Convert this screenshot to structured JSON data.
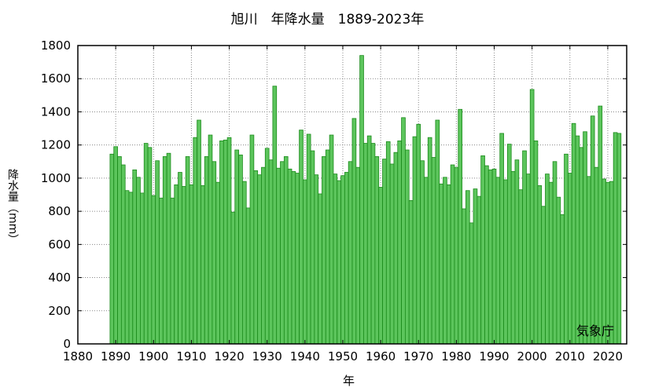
{
  "chart_data": {
    "type": "bar",
    "title": "旭川　年降水量　1889-2023年",
    "xlabel": "年",
    "ylabel": "降水量（mm）",
    "credit": "気象庁",
    "xlim": [
      1880,
      2025
    ],
    "ylim": [
      0,
      1800
    ],
    "xticks": [
      1880,
      1890,
      1900,
      1910,
      1920,
      1930,
      1940,
      1950,
      1960,
      1970,
      1980,
      1990,
      2000,
      2010,
      2020
    ],
    "yticks": [
      0,
      200,
      400,
      600,
      800,
      1000,
      1200,
      1400,
      1600,
      1800
    ],
    "grid": true,
    "bar_color": "#5cc55c",
    "edge_color": "#1a8a1a",
    "series": [
      {
        "x_start": 1889,
        "values": [
          1145,
          1190,
          1130,
          1080,
          925,
          915,
          1050,
          1005,
          910,
          1210,
          1185,
          895,
          1105,
          880,
          1130,
          1150,
          880,
          960,
          1035,
          950,
          1130,
          960,
          1245,
          1350,
          955,
          1130,
          1260,
          1100,
          975,
          1225,
          1230,
          1245,
          795,
          1170,
          1140,
          980,
          820,
          1260,
          1045,
          1020,
          1065,
          1180,
          1110,
          1555,
          1060,
          1100,
          1130,
          1055,
          1040,
          1030,
          1290,
          990,
          1265,
          1165,
          1020,
          905,
          1130,
          1170,
          1260,
          1025,
          985,
          1015,
          1035,
          1100,
          1360,
          1065,
          1740,
          1210,
          1255,
          1210,
          1130,
          945,
          1115,
          1220,
          1085,
          1155,
          1225,
          1365,
          1170,
          865,
          1250,
          1325,
          1105,
          1005,
          1245,
          1125,
          1350,
          965,
          1005,
          960,
          1080,
          1065,
          1415,
          815,
          925,
          730,
          935,
          890,
          1135,
          1075,
          1050,
          1055,
          1005,
          1270,
          990,
          1205,
          1040,
          1110,
          930,
          1165,
          1025,
          1535,
          1225,
          955,
          830,
          1025,
          975,
          1100,
          885,
          780,
          1145,
          1030,
          1330,
          1255,
          1185,
          1280,
          1010,
          1375,
          1065,
          1435,
          995,
          975,
          980,
          1275,
          1270
        ]
      }
    ]
  }
}
